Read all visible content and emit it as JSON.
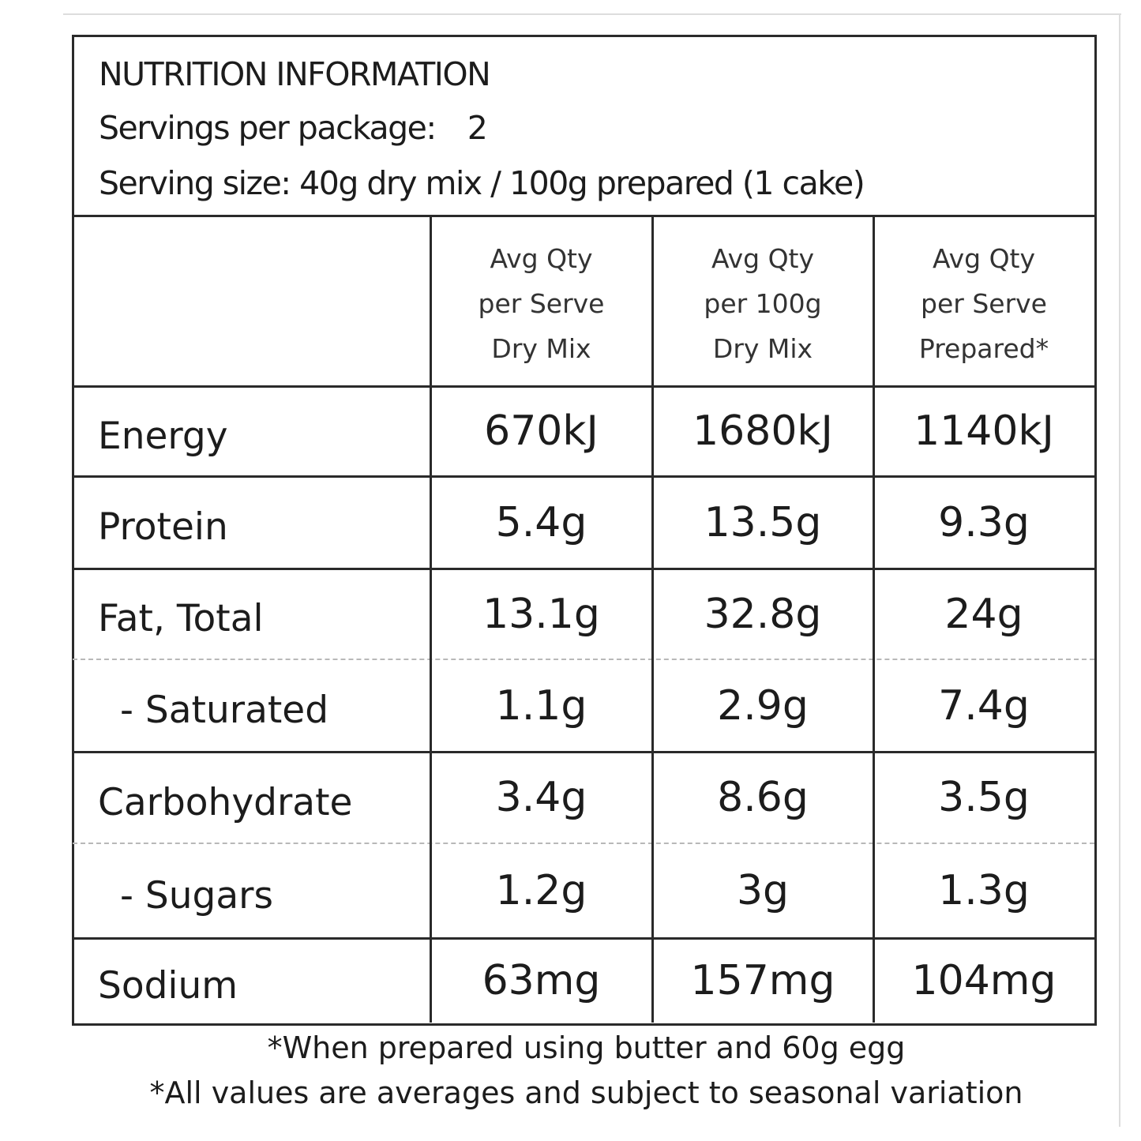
{
  "header": {
    "title": "NUTRITION INFORMATION",
    "servings_label": "Servings per package:",
    "servings_value": "2",
    "serving_size": "Serving size: 40g dry mix / 100g prepared (1 cake)"
  },
  "table": {
    "columns": [
      [
        "Avg Qty",
        "per Serve",
        "Dry Mix"
      ],
      [
        "Avg Qty",
        "per 100g",
        "Dry Mix"
      ],
      [
        "Avg Qty",
        "per Serve",
        "Prepared*"
      ]
    ],
    "rows": [
      [
        "Energy",
        "670kJ",
        "1680kJ",
        "1140kJ"
      ],
      [
        "Protein",
        "5.4g",
        "13.5g",
        "9.3g"
      ],
      [
        "Fat, Total",
        "13.1g",
        "32.8g",
        "24g"
      ],
      [
        "- Saturated",
        "1.1g",
        "2.9g",
        "7.4g"
      ],
      [
        "Carbohydrate",
        "3.4g",
        "8.6g",
        "3.5g"
      ],
      [
        "- Sugars",
        "1.2g",
        "3g",
        "1.3g"
      ],
      [
        "Sodium",
        "63mg",
        "157mg",
        "104mg"
      ]
    ]
  },
  "footnotes": [
    "*When prepared using butter and 60g egg",
    "*All values are averages and subject to seasonal variation"
  ]
}
